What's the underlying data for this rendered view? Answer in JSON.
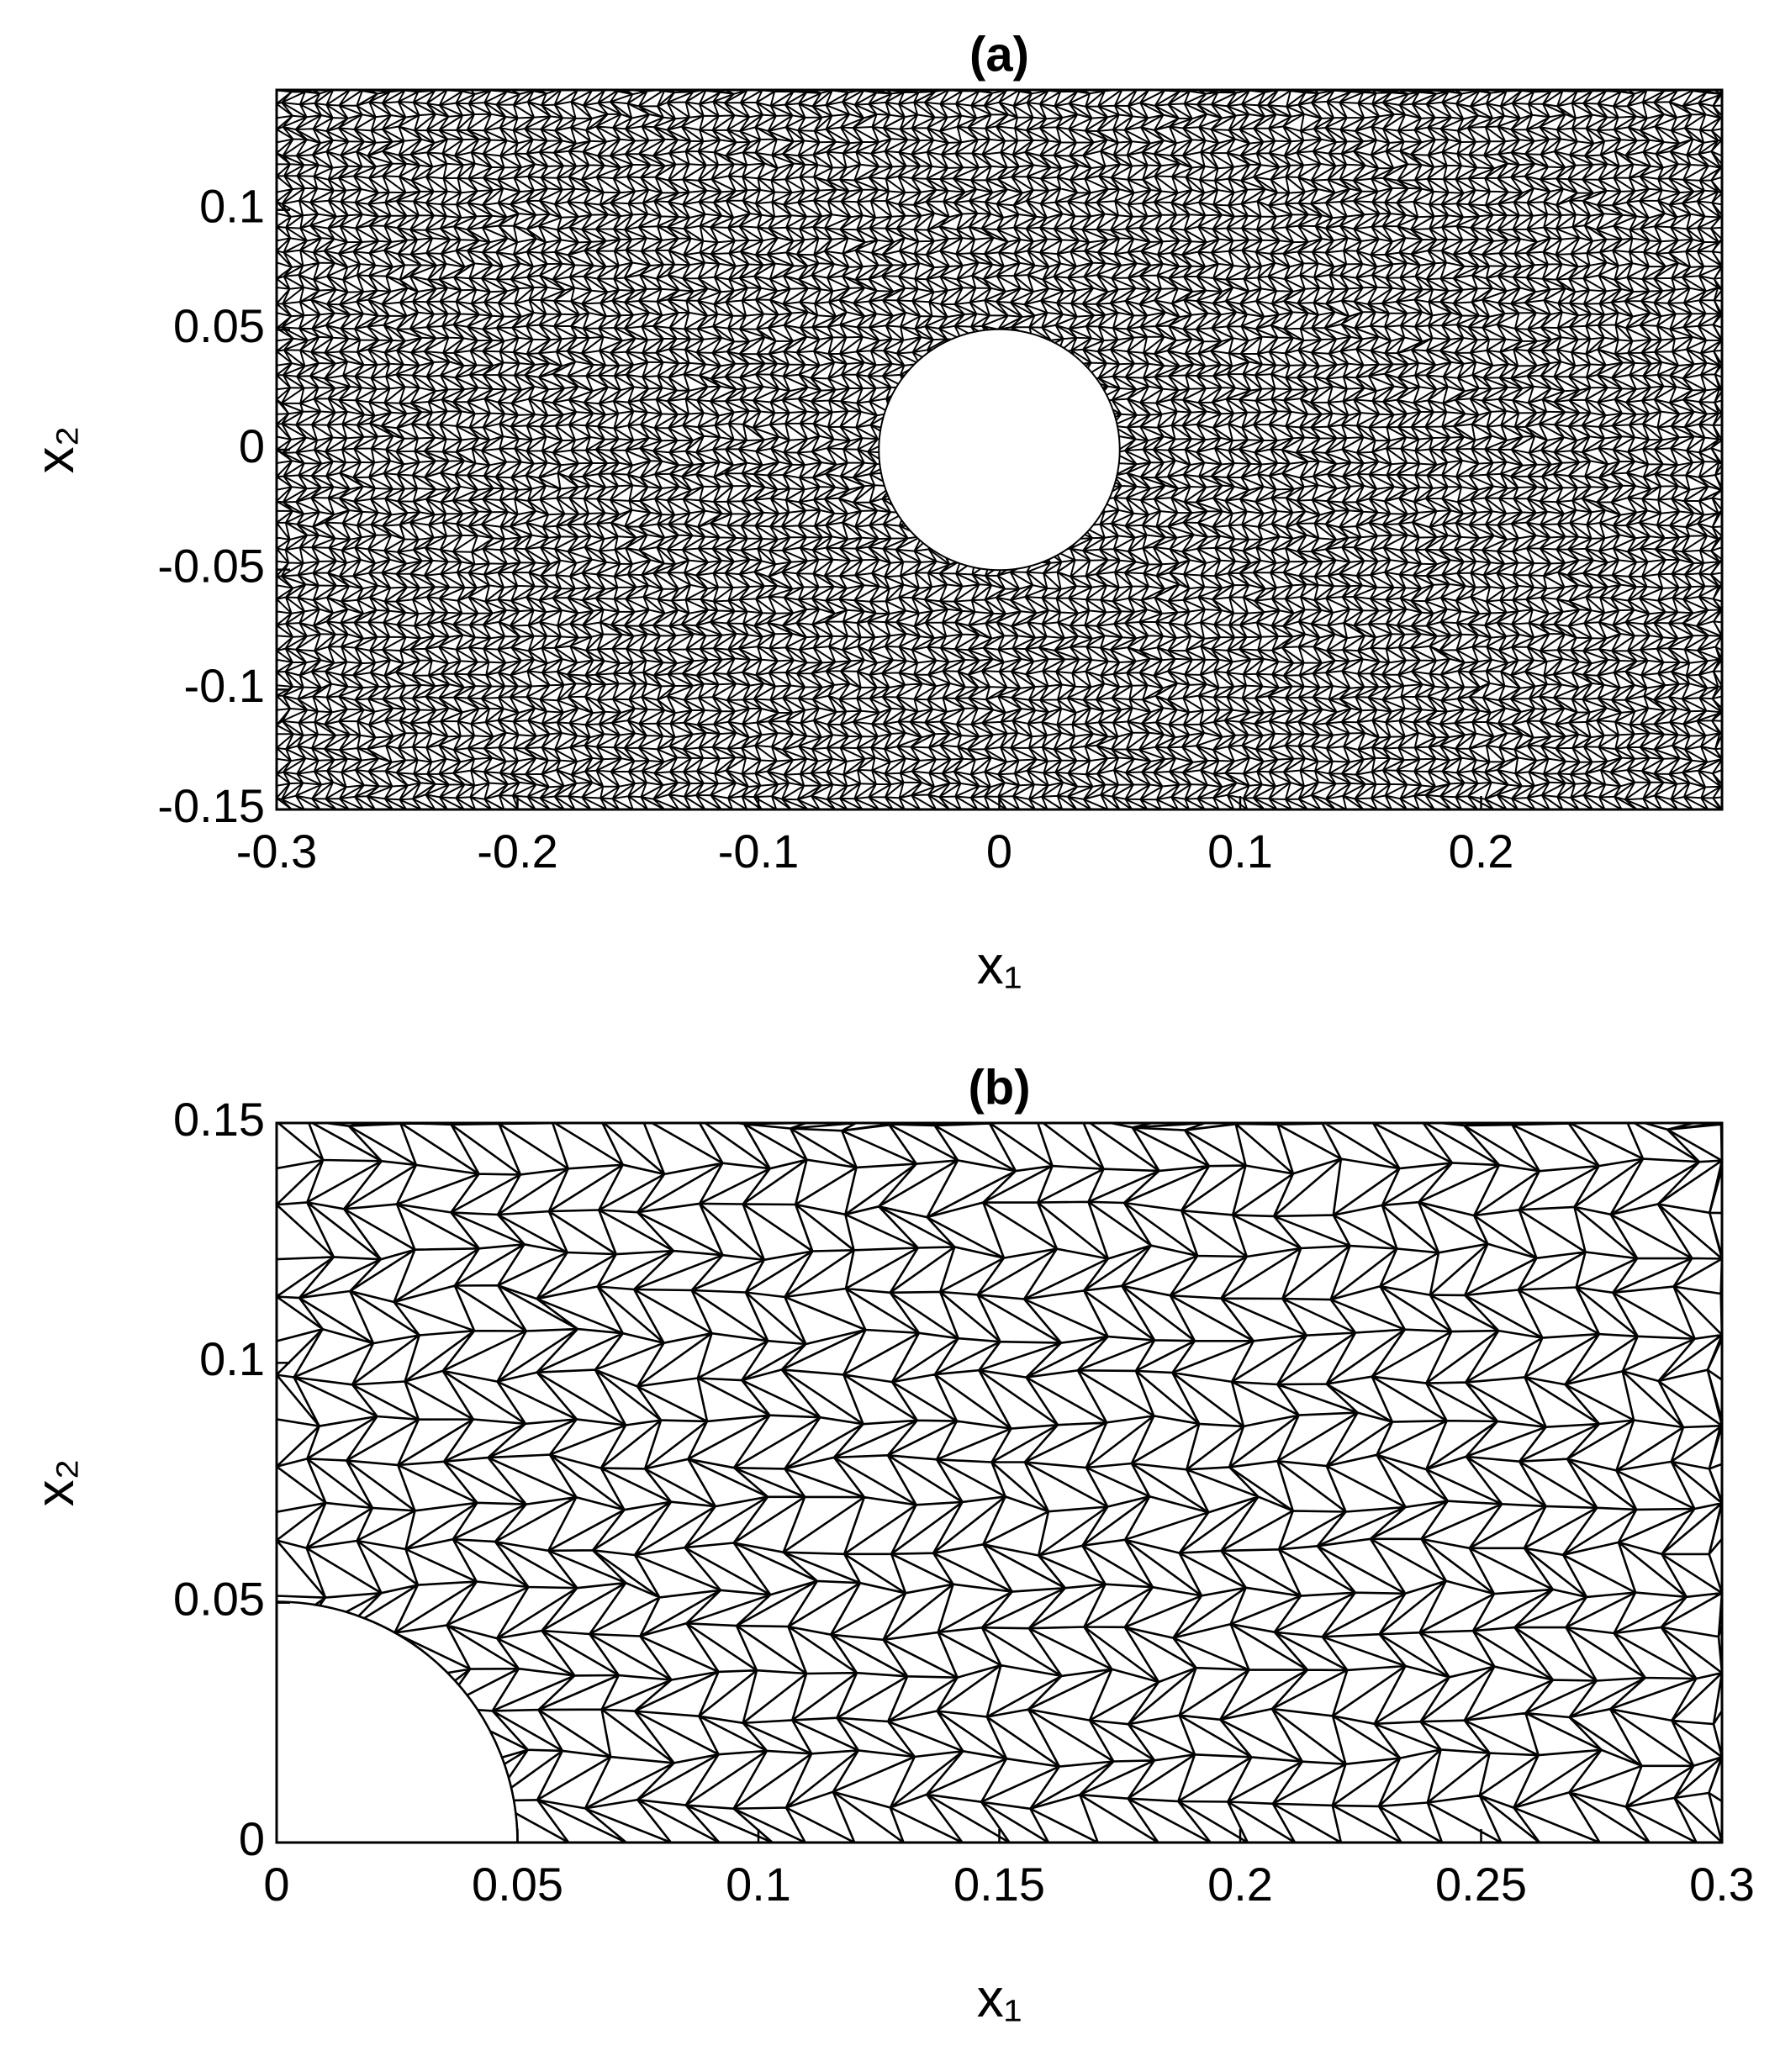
{
  "chart_data": [
    {
      "type": "mesh",
      "title": "(a)",
      "xlabel": "x₁",
      "ylabel": "x₂",
      "xlim": [
        -0.3,
        0.3
      ],
      "xticks": [
        -0.3,
        -0.2,
        -0.1,
        0,
        0.1,
        0.2
      ],
      "ylim": [
        -0.15,
        0.15
      ],
      "yticks": [
        -0.15,
        -0.1,
        -0.05,
        0,
        0.05,
        0.1
      ],
      "color": "#000000"
    },
    {
      "type": "mesh",
      "title": "(b)",
      "xlabel": "x₁",
      "ylabel": "x₂",
      "xlim": [
        0,
        0.3
      ],
      "xticks": [
        0,
        0.05,
        0.1,
        0.15,
        0.2,
        0.25,
        0.3
      ],
      "ylim": [
        0,
        0.15
      ],
      "yticks": [
        0,
        0.05,
        0.1,
        0.15
      ],
      "color": "#000000"
    }
  ]
}
